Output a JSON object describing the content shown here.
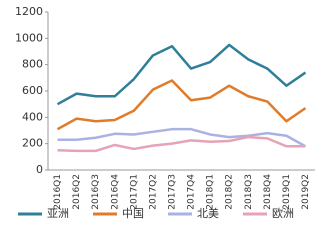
{
  "chart_data": {
    "type": "line",
    "categories": [
      "2016Q1",
      "2016Q2",
      "2016Q3",
      "2016Q4",
      "2017Q1",
      "2017Q2",
      "2017Q3",
      "2017Q4",
      "2018Q1",
      "2018Q2",
      "2018Q3",
      "2018Q4",
      "2019Q1",
      "2019Q2"
    ],
    "series": [
      {
        "name": "亚洲",
        "color": "#2f7f99",
        "values": [
          500,
          580,
          560,
          560,
          690,
          870,
          940,
          770,
          820,
          950,
          840,
          770,
          640,
          740
        ]
      },
      {
        "name": "中国",
        "color": "#e07b2a",
        "values": [
          310,
          390,
          370,
          380,
          450,
          610,
          680,
          530,
          550,
          640,
          560,
          520,
          370,
          470
        ]
      },
      {
        "name": "北美",
        "color": "#a9b2e2",
        "values": [
          230,
          230,
          245,
          275,
          270,
          290,
          310,
          310,
          270,
          250,
          260,
          280,
          260,
          180
        ]
      },
      {
        "name": "欧洲",
        "color": "#e6a3b6",
        "values": [
          150,
          145,
          145,
          190,
          160,
          185,
          200,
          225,
          215,
          220,
          250,
          240,
          180,
          180
        ]
      }
    ],
    "ylim": [
      0,
      1200
    ],
    "yticks": [
      0,
      200,
      400,
      600,
      800,
      1000,
      1200
    ],
    "grid": false
  }
}
